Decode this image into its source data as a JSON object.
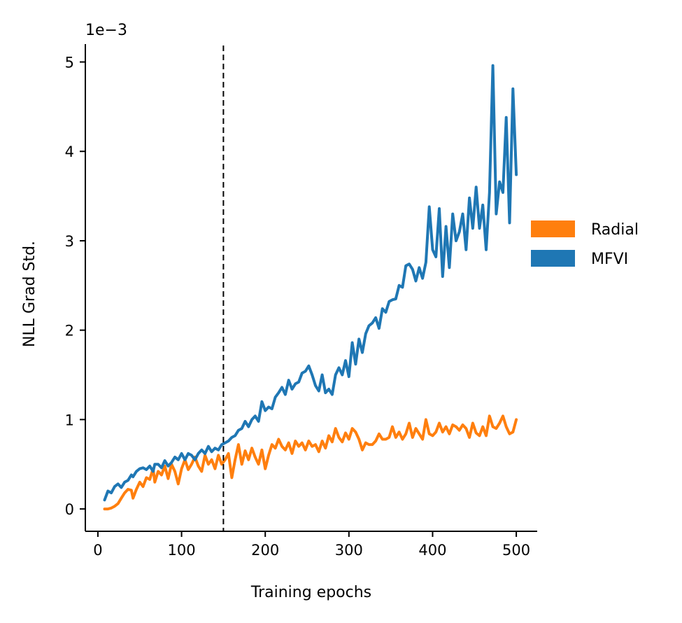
{
  "chart_data": {
    "type": "line",
    "title": "",
    "xlabel": "Training epochs",
    "ylabel": "NLL Grad Std.",
    "y_offset_label": "1e−3",
    "xlim": [
      -15,
      525
    ],
    "ylim": [
      -0.25,
      5.2
    ],
    "xticks": [
      0,
      100,
      200,
      300,
      400,
      500
    ],
    "yticks": [
      0,
      1,
      2,
      3,
      4,
      5
    ],
    "grid": false,
    "legend_position": "right",
    "vline": {
      "x": 150,
      "style": "dashed",
      "color": "#000000"
    },
    "series": [
      {
        "name": "Radial",
        "color": "#ff7f0e",
        "points": [
          [
            8,
            0.0
          ],
          [
            12,
            0.0
          ],
          [
            16,
            0.01
          ],
          [
            20,
            0.03
          ],
          [
            24,
            0.06
          ],
          [
            28,
            0.12
          ],
          [
            32,
            0.18
          ],
          [
            36,
            0.22
          ],
          [
            40,
            0.21
          ],
          [
            42,
            0.12
          ],
          [
            46,
            0.22
          ],
          [
            50,
            0.3
          ],
          [
            54,
            0.25
          ],
          [
            58,
            0.35
          ],
          [
            62,
            0.33
          ],
          [
            66,
            0.45
          ],
          [
            68,
            0.3
          ],
          [
            72,
            0.42
          ],
          [
            76,
            0.38
          ],
          [
            80,
            0.48
          ],
          [
            84,
            0.34
          ],
          [
            88,
            0.5
          ],
          [
            92,
            0.42
          ],
          [
            96,
            0.28
          ],
          [
            100,
            0.45
          ],
          [
            104,
            0.55
          ],
          [
            108,
            0.44
          ],
          [
            112,
            0.5
          ],
          [
            116,
            0.58
          ],
          [
            120,
            0.48
          ],
          [
            124,
            0.42
          ],
          [
            128,
            0.6
          ],
          [
            132,
            0.5
          ],
          [
            136,
            0.55
          ],
          [
            140,
            0.45
          ],
          [
            144,
            0.6
          ],
          [
            148,
            0.5
          ],
          [
            152,
            0.55
          ],
          [
            156,
            0.62
          ],
          [
            160,
            0.35
          ],
          [
            164,
            0.55
          ],
          [
            168,
            0.72
          ],
          [
            172,
            0.5
          ],
          [
            176,
            0.65
          ],
          [
            180,
            0.55
          ],
          [
            184,
            0.68
          ],
          [
            188,
            0.58
          ],
          [
            192,
            0.5
          ],
          [
            196,
            0.66
          ],
          [
            200,
            0.45
          ],
          [
            204,
            0.6
          ],
          [
            208,
            0.72
          ],
          [
            212,
            0.68
          ],
          [
            216,
            0.78
          ],
          [
            220,
            0.7
          ],
          [
            224,
            0.66
          ],
          [
            228,
            0.74
          ],
          [
            232,
            0.62
          ],
          [
            236,
            0.76
          ],
          [
            240,
            0.7
          ],
          [
            244,
            0.74
          ],
          [
            248,
            0.66
          ],
          [
            252,
            0.76
          ],
          [
            256,
            0.7
          ],
          [
            260,
            0.72
          ],
          [
            264,
            0.64
          ],
          [
            268,
            0.76
          ],
          [
            272,
            0.68
          ],
          [
            276,
            0.82
          ],
          [
            280,
            0.75
          ],
          [
            284,
            0.9
          ],
          [
            288,
            0.8
          ],
          [
            292,
            0.75
          ],
          [
            296,
            0.85
          ],
          [
            300,
            0.78
          ],
          [
            304,
            0.9
          ],
          [
            308,
            0.86
          ],
          [
            312,
            0.78
          ],
          [
            316,
            0.66
          ],
          [
            320,
            0.74
          ],
          [
            324,
            0.72
          ],
          [
            328,
            0.72
          ],
          [
            332,
            0.76
          ],
          [
            336,
            0.84
          ],
          [
            340,
            0.78
          ],
          [
            344,
            0.78
          ],
          [
            348,
            0.8
          ],
          [
            352,
            0.92
          ],
          [
            356,
            0.8
          ],
          [
            360,
            0.86
          ],
          [
            364,
            0.78
          ],
          [
            368,
            0.84
          ],
          [
            372,
            0.96
          ],
          [
            376,
            0.8
          ],
          [
            380,
            0.9
          ],
          [
            384,
            0.84
          ],
          [
            388,
            0.78
          ],
          [
            392,
            1.0
          ],
          [
            396,
            0.84
          ],
          [
            400,
            0.82
          ],
          [
            404,
            0.86
          ],
          [
            408,
            0.96
          ],
          [
            412,
            0.86
          ],
          [
            416,
            0.92
          ],
          [
            420,
            0.84
          ],
          [
            424,
            0.94
          ],
          [
            428,
            0.92
          ],
          [
            432,
            0.88
          ],
          [
            436,
            0.94
          ],
          [
            440,
            0.9
          ],
          [
            444,
            0.8
          ],
          [
            448,
            0.96
          ],
          [
            452,
            0.85
          ],
          [
            456,
            0.82
          ],
          [
            460,
            0.92
          ],
          [
            464,
            0.82
          ],
          [
            468,
            1.04
          ],
          [
            472,
            0.92
          ],
          [
            476,
            0.9
          ],
          [
            480,
            0.96
          ],
          [
            484,
            1.04
          ],
          [
            488,
            0.92
          ],
          [
            492,
            0.84
          ],
          [
            496,
            0.86
          ],
          [
            500,
            1.0
          ]
        ]
      },
      {
        "name": "MFVI",
        "color": "#1f77b4",
        "points": [
          [
            8,
            0.1
          ],
          [
            12,
            0.2
          ],
          [
            16,
            0.18
          ],
          [
            20,
            0.25
          ],
          [
            24,
            0.28
          ],
          [
            28,
            0.24
          ],
          [
            32,
            0.3
          ],
          [
            36,
            0.32
          ],
          [
            40,
            0.38
          ],
          [
            42,
            0.36
          ],
          [
            46,
            0.42
          ],
          [
            50,
            0.45
          ],
          [
            54,
            0.46
          ],
          [
            58,
            0.44
          ],
          [
            62,
            0.48
          ],
          [
            66,
            0.42
          ],
          [
            68,
            0.5
          ],
          [
            72,
            0.5
          ],
          [
            76,
            0.46
          ],
          [
            80,
            0.54
          ],
          [
            84,
            0.48
          ],
          [
            88,
            0.52
          ],
          [
            92,
            0.58
          ],
          [
            96,
            0.55
          ],
          [
            100,
            0.62
          ],
          [
            104,
            0.55
          ],
          [
            108,
            0.62
          ],
          [
            112,
            0.6
          ],
          [
            116,
            0.55
          ],
          [
            120,
            0.62
          ],
          [
            124,
            0.66
          ],
          [
            128,
            0.62
          ],
          [
            132,
            0.7
          ],
          [
            136,
            0.64
          ],
          [
            140,
            0.68
          ],
          [
            144,
            0.66
          ],
          [
            148,
            0.72
          ],
          [
            152,
            0.74
          ],
          [
            156,
            0.76
          ],
          [
            160,
            0.8
          ],
          [
            164,
            0.82
          ],
          [
            168,
            0.88
          ],
          [
            172,
            0.9
          ],
          [
            176,
            0.98
          ],
          [
            180,
            0.92
          ],
          [
            184,
            1.0
          ],
          [
            188,
            1.04
          ],
          [
            192,
            0.98
          ],
          [
            196,
            1.2
          ],
          [
            200,
            1.1
          ],
          [
            204,
            1.14
          ],
          [
            208,
            1.12
          ],
          [
            212,
            1.25
          ],
          [
            216,
            1.3
          ],
          [
            220,
            1.36
          ],
          [
            224,
            1.28
          ],
          [
            228,
            1.44
          ],
          [
            232,
            1.34
          ],
          [
            236,
            1.4
          ],
          [
            240,
            1.42
          ],
          [
            244,
            1.52
          ],
          [
            248,
            1.54
          ],
          [
            252,
            1.6
          ],
          [
            256,
            1.5
          ],
          [
            260,
            1.38
          ],
          [
            264,
            1.32
          ],
          [
            268,
            1.5
          ],
          [
            272,
            1.3
          ],
          [
            276,
            1.34
          ],
          [
            280,
            1.28
          ],
          [
            284,
            1.5
          ],
          [
            288,
            1.58
          ],
          [
            292,
            1.5
          ],
          [
            296,
            1.66
          ],
          [
            300,
            1.48
          ],
          [
            304,
            1.86
          ],
          [
            308,
            1.62
          ],
          [
            312,
            1.9
          ],
          [
            316,
            1.75
          ],
          [
            320,
            1.96
          ],
          [
            324,
            2.05
          ],
          [
            328,
            2.08
          ],
          [
            332,
            2.14
          ],
          [
            336,
            2.02
          ],
          [
            340,
            2.24
          ],
          [
            344,
            2.2
          ],
          [
            348,
            2.32
          ],
          [
            352,
            2.34
          ],
          [
            356,
            2.35
          ],
          [
            360,
            2.5
          ],
          [
            364,
            2.48
          ],
          [
            368,
            2.72
          ],
          [
            372,
            2.74
          ],
          [
            376,
            2.68
          ],
          [
            380,
            2.55
          ],
          [
            384,
            2.7
          ],
          [
            388,
            2.58
          ],
          [
            392,
            2.76
          ],
          [
            396,
            3.38
          ],
          [
            400,
            2.9
          ],
          [
            404,
            2.82
          ],
          [
            408,
            3.36
          ],
          [
            412,
            2.6
          ],
          [
            416,
            3.16
          ],
          [
            420,
            2.7
          ],
          [
            424,
            3.3
          ],
          [
            428,
            3.0
          ],
          [
            432,
            3.1
          ],
          [
            436,
            3.3
          ],
          [
            440,
            2.9
          ],
          [
            444,
            3.48
          ],
          [
            448,
            3.14
          ],
          [
            452,
            3.6
          ],
          [
            456,
            3.14
          ],
          [
            460,
            3.4
          ],
          [
            464,
            2.9
          ],
          [
            468,
            3.54
          ],
          [
            472,
            4.96
          ],
          [
            476,
            3.3
          ],
          [
            480,
            3.66
          ],
          [
            484,
            3.54
          ],
          [
            488,
            4.38
          ],
          [
            492,
            3.2
          ],
          [
            496,
            4.7
          ],
          [
            500,
            3.74
          ]
        ]
      }
    ]
  }
}
